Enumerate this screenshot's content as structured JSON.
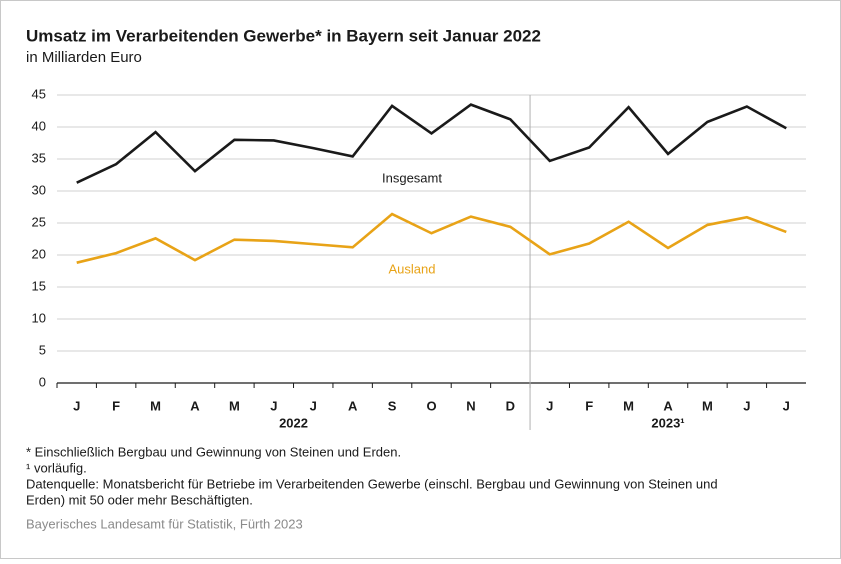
{
  "chart_data": {
    "type": "line",
    "title": "Umsatz im Verarbeitenden Gewerbe* in Bayern seit Januar 2022",
    "subtitle": "in Milliarden Euro",
    "groups": [
      {
        "label": "2022",
        "categories": [
          "J",
          "F",
          "M",
          "A",
          "M",
          "J",
          "J",
          "A",
          "S",
          "O",
          "N",
          "D"
        ]
      },
      {
        "label": "2023¹",
        "categories": [
          "J",
          "F",
          "M",
          "A",
          "M",
          "J",
          "J"
        ]
      }
    ],
    "series": [
      {
        "name": "Insgesamt",
        "color": "#1a1a1a",
        "values": [
          31.3,
          34.2,
          39.2,
          33.1,
          38.0,
          37.9,
          36.7,
          35.4,
          43.3,
          39.0,
          43.5,
          41.2,
          34.7,
          36.8,
          43.1,
          35.8,
          40.8,
          43.2,
          39.8
        ]
      },
      {
        "name": "Ausland",
        "color": "#e8a317",
        "values": [
          18.8,
          20.3,
          22.6,
          19.2,
          22.4,
          22.2,
          21.7,
          21.2,
          26.4,
          23.4,
          26.0,
          24.4,
          20.1,
          21.8,
          25.2,
          21.1,
          24.7,
          25.9,
          23.6
        ]
      }
    ],
    "ylim": [
      0,
      45
    ],
    "yticks": [
      0,
      5,
      10,
      15,
      20,
      25,
      30,
      35,
      40,
      45
    ],
    "grid": true,
    "footnotes": [
      "* Einschließlich Bergbau und Gewinnung von Steinen und Erden.",
      "¹  vorläufig.",
      "Datenquelle: Monatsbericht für Betriebe im Verarbeitenden Gewerbe (einschl. Bergbau und Gewinnung von Steinen und",
      "Erden) mit 50 oder mehr Beschäftigten."
    ],
    "source": "Bayerisches Landesamt für Statistik, Fürth 2023"
  }
}
